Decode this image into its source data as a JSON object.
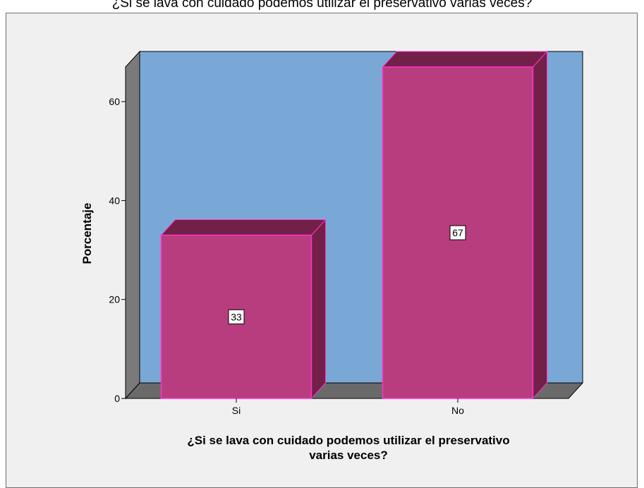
{
  "chart_data": {
    "type": "bar",
    "title": "¿Si se lava con cuidado podemos utilizar el preservativo varias veces?",
    "xlabel_lines": [
      "¿Si se lava con cuidado podemos utilizar el preservativo",
      "varias veces?"
    ],
    "ylabel": "Porcentaje",
    "categories": [
      "Si",
      "No"
    ],
    "values": [
      33,
      67
    ],
    "data_labels": [
      "33",
      "67"
    ],
    "ylim": [
      0,
      67
    ],
    "yticks": [
      0,
      20,
      40,
      60
    ],
    "grid": false,
    "style": "3d",
    "colors": {
      "plot_back": "#7aa8d6",
      "wall_side": "#7a7a7a",
      "floor": "#6a6a6a",
      "bar_front": "#b83d7e",
      "bar_top": "#722048",
      "bar_side": "#722048",
      "bar_edge": "#ff33cc"
    }
  }
}
